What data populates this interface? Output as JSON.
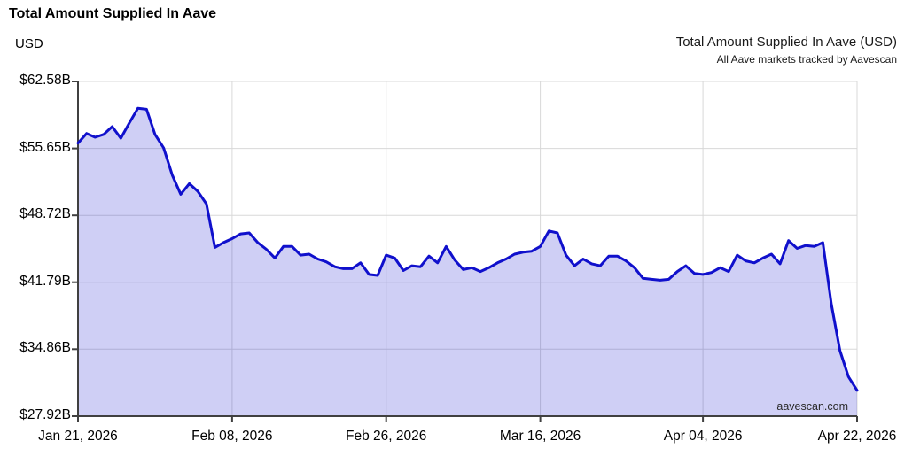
{
  "header": {
    "title": "Total Amount Supplied In Aave",
    "unit": "USD",
    "legend_title": "Total Amount Supplied In Aave (USD)",
    "legend_subtitle": "All Aave markets tracked by Aavescan"
  },
  "watermark": "aavescan.com",
  "chart_data": {
    "type": "area",
    "title": "Total Amount Supplied In Aave (USD)",
    "subtitle": "All Aave markets tracked by Aavescan",
    "ylabel": "USD",
    "ylim": [
      27.92,
      62.58
    ],
    "grid": true,
    "y_ticks": [
      {
        "value": 62.58,
        "label": "$62.58B"
      },
      {
        "value": 55.65,
        "label": "$55.65B"
      },
      {
        "value": 48.72,
        "label": "$48.72B"
      },
      {
        "value": 41.79,
        "label": "$41.79B"
      },
      {
        "value": 34.86,
        "label": "$34.86B"
      },
      {
        "value": 27.92,
        "label": "$27.92B"
      }
    ],
    "x_ticks": [
      {
        "day": 0,
        "label": "Jan 21, 2026"
      },
      {
        "day": 18,
        "label": "Feb 08, 2026"
      },
      {
        "day": 36,
        "label": "Feb 26, 2026"
      },
      {
        "day": 54,
        "label": "Mar 16, 2026"
      },
      {
        "day": 73,
        "label": "Apr 04, 2026"
      },
      {
        "day": 91,
        "label": "Apr 22, 2026"
      }
    ],
    "series": [
      {
        "name": "Total Amount Supplied In Aave (USD, billions)",
        "start_date": "Jan 21, 2026",
        "end_date": "Apr 22, 2026",
        "values": [
          56.2,
          57.2,
          56.8,
          57.1,
          57.9,
          56.7,
          58.3,
          59.8,
          59.7,
          57.1,
          55.7,
          52.9,
          50.9,
          52.0,
          51.2,
          49.9,
          45.4,
          45.9,
          46.3,
          46.8,
          46.9,
          45.9,
          45.2,
          44.3,
          45.5,
          45.5,
          44.6,
          44.7,
          44.2,
          43.9,
          43.4,
          43.2,
          43.2,
          43.8,
          42.6,
          42.5,
          44.6,
          44.3,
          43.0,
          43.5,
          43.4,
          44.5,
          43.8,
          45.5,
          44.1,
          43.1,
          43.3,
          42.9,
          43.3,
          43.8,
          44.2,
          44.7,
          44.9,
          45.0,
          45.5,
          47.1,
          46.9,
          44.6,
          43.5,
          44.2,
          43.7,
          43.5,
          44.5,
          44.5,
          44.0,
          43.3,
          42.2,
          42.1,
          42.0,
          42.1,
          42.9,
          43.5,
          42.7,
          42.6,
          42.8,
          43.3,
          42.9,
          44.6,
          44.0,
          43.8,
          44.3,
          44.7,
          43.7,
          46.1,
          45.3,
          45.6,
          45.5,
          45.9,
          39.5,
          34.7,
          32.0,
          30.6
        ]
      }
    ],
    "colors": {
      "line": "#1010cc",
      "fill": "rgba(16,16,204,0.2)",
      "grid": "#d8d8d8",
      "axis": "#404040",
      "text": "#000000"
    }
  }
}
